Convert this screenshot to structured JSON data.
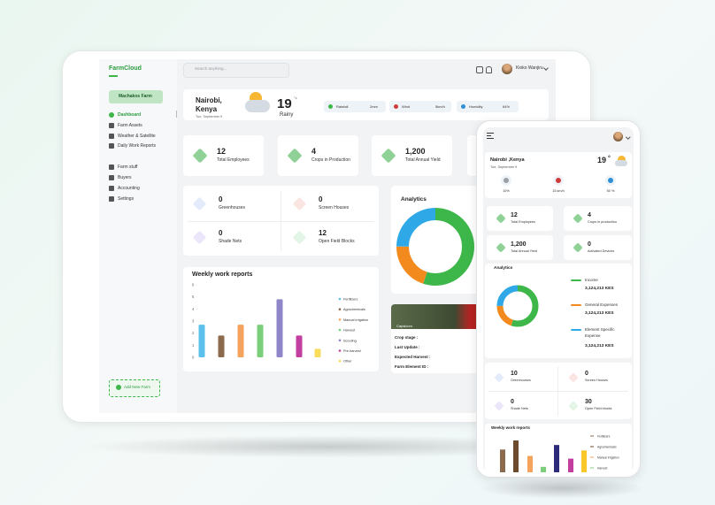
{
  "tablet": {
    "logo": "FarmCloud",
    "search": "Search anything...",
    "user": "Kioko Wanjiru",
    "farm": "Machakos Farm",
    "nav": [
      "Dashboard",
      "Farm Assets",
      "Weather & Satellite",
      "Daily Work Reports",
      "Farm stuff",
      "Buyers",
      "Accounting",
      "Settings"
    ],
    "add_farm": "Add New Farm",
    "weather": {
      "city": "Nairobi,",
      "country": "Kenya",
      "date": "Tue, September 9",
      "temp": "19",
      "unit": "°c",
      "condition": "Rainy",
      "metrics": [
        {
          "label": "Rainfall",
          "value": "2mm"
        },
        {
          "label": "Wind",
          "value": "5km/h"
        },
        {
          "label": "Humidity",
          "value": "64%"
        }
      ]
    },
    "stats": [
      {
        "value": "12",
        "label": "Total Employees"
      },
      {
        "value": "4",
        "label": "Crops in Production"
      },
      {
        "value": "1,200",
        "label": "Total Annual Yield"
      }
    ],
    "blocks": [
      {
        "value": "0",
        "label": "Greenhouses"
      },
      {
        "value": "0",
        "label": "Screen Houses"
      },
      {
        "value": "0",
        "label": "Shade Nets"
      },
      {
        "value": "12",
        "label": "Open Field Blocks"
      }
    ],
    "crop": {
      "tag": "Capsicum",
      "fields": [
        "Crop stage :",
        "Last Update :",
        "Expected Harvest :",
        "Farm Element ID :"
      ]
    }
  },
  "phone": {
    "city": "Nairobi ,Kenya",
    "date": "Tue, September 9",
    "temp": "19",
    "unit": "°",
    "metrics": [
      "10%",
      "15 km/h",
      "50 %"
    ],
    "stats": [
      {
        "value": "12",
        "label": "Total Employees"
      },
      {
        "value": "4",
        "label": "Crops in production"
      },
      {
        "value": "1,200",
        "label": "Total Annual Yield"
      },
      {
        "value": "0",
        "label": "Activated Devices"
      }
    ],
    "blocks": [
      {
        "value": "10",
        "label": "Greenhouses"
      },
      {
        "value": "0",
        "label": "Screen Houses"
      },
      {
        "value": "0",
        "label": "Shade Nets"
      },
      {
        "value": "30",
        "label": "Open Field blocks"
      }
    ]
  },
  "chart_data": [
    {
      "type": "bar",
      "title": "Weekly work reports",
      "categories": [
        "Fertilizers",
        "Agrochemicals",
        "Manual irrigation",
        "Harvest",
        "Scouting",
        "Pre-harvest",
        "Other"
      ],
      "values": [
        2.7,
        1.8,
        2.7,
        2.7,
        4.8,
        1.8,
        0.7
      ],
      "colors": [
        "#5bc0eb",
        "#8b6a4e",
        "#f5a35c",
        "#7ccf7a",
        "#8e86c9",
        "#c23fa0",
        "#f8dc5a"
      ],
      "ylim": [
        0,
        6
      ],
      "yticks": [
        0,
        1,
        2,
        3,
        4,
        5,
        6
      ]
    },
    {
      "type": "pie",
      "title": "Analytics",
      "values": [
        55,
        20,
        25
      ],
      "colors": [
        "#3db74a",
        "#f28a1e",
        "#2ea8e6"
      ]
    },
    {
      "type": "pie",
      "title": "Analytics",
      "categories": [
        "Income",
        "General Expenses",
        "Element Specific Expense"
      ],
      "amounts": [
        "3,124,213 KES",
        "3,124,213 KES",
        "3,124,213 KES"
      ],
      "values": [
        55,
        20,
        25
      ],
      "colors": [
        "#3db74a",
        "#f28a1e",
        "#2ea8e6"
      ]
    },
    {
      "type": "bar",
      "title": "Weekly work reports",
      "categories": [
        "Fertilizers",
        "Agrochemicals",
        "Manual Irrigation",
        "Harvest",
        null,
        null,
        null
      ],
      "values": [
        2.5,
        3.5,
        1.8,
        0.6,
        3,
        1.5,
        2.4
      ],
      "colors": [
        "#8b6a4e",
        "#6b4a2e",
        "#f5a35c",
        "#7ccf7a",
        "#2e2a7a",
        "#c23fa0",
        "#f8c82a"
      ]
    }
  ]
}
